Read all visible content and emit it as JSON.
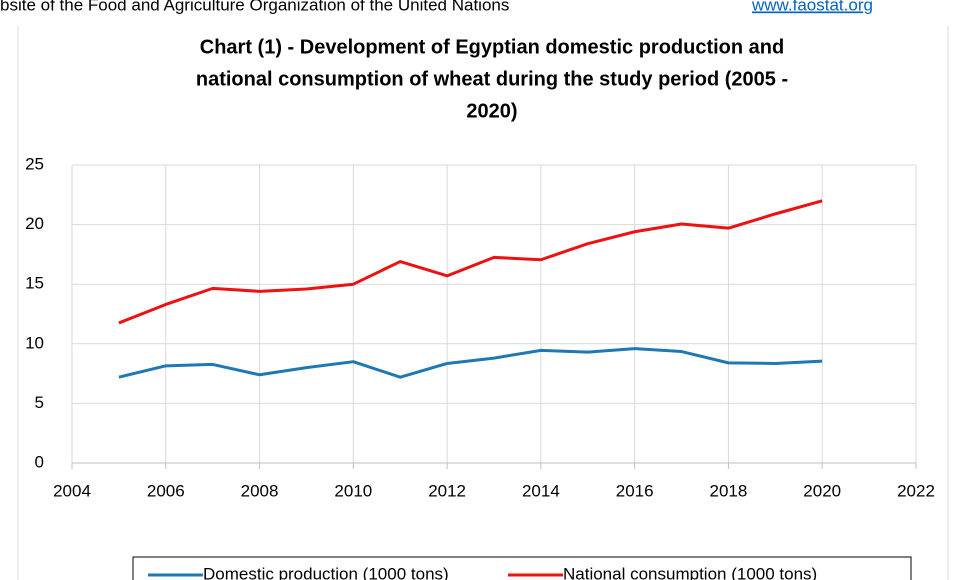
{
  "source_note": {
    "text": "bsite of the Food and Agriculture Organization of the United Nations",
    "link": "www.faostat.org"
  },
  "chart_data": {
    "type": "line",
    "title": [
      "Chart (1) - Development of Egyptian domestic production and",
      "national consumption of wheat during the study period (2005 -",
      "2020)"
    ],
    "x": [
      2005,
      2006,
      2007,
      2008,
      2009,
      2010,
      2011,
      2012,
      2013,
      2014,
      2015,
      2016,
      2017,
      2018,
      2019,
      2020
    ],
    "series": [
      {
        "name": "Domestic production (1000 tons)",
        "color": "#1f77b4",
        "values": [
          7.2,
          8.15,
          8.27,
          7.4,
          8.0,
          8.5,
          7.2,
          8.35,
          8.8,
          9.45,
          9.3,
          9.6,
          9.35,
          8.4,
          8.35,
          8.55
        ]
      },
      {
        "name": "National consumption (1000 tons)",
        "color": "#ee1111",
        "values": [
          11.75,
          13.3,
          14.65,
          14.4,
          14.6,
          15.0,
          16.9,
          15.7,
          17.25,
          17.05,
          18.4,
          19.4,
          20.05,
          19.7,
          20.9,
          22.0
        ]
      }
    ],
    "xlim": [
      2004,
      2022
    ],
    "xticks": [
      2004,
      2006,
      2008,
      2010,
      2012,
      2014,
      2016,
      2018,
      2020,
      2022
    ],
    "ylim": [
      0,
      25
    ],
    "yticks": [
      0,
      5,
      10,
      15,
      20,
      25
    ],
    "grid": true,
    "legend": "bottom"
  }
}
